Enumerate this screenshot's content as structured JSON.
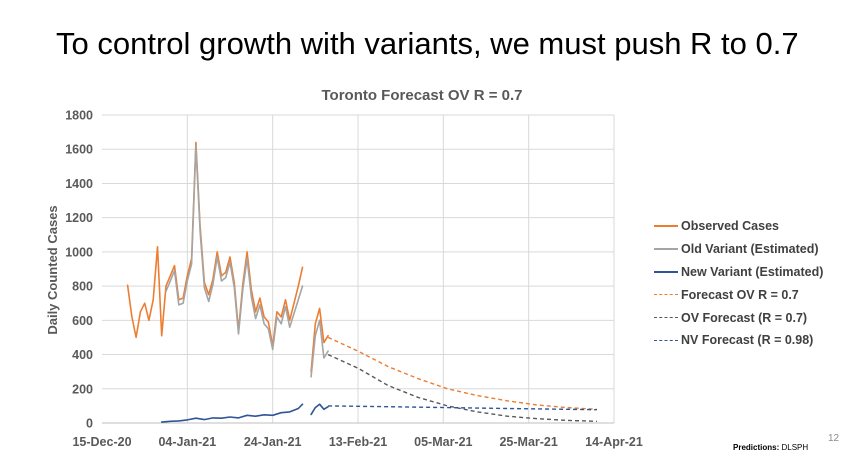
{
  "slide": {
    "title": "To control growth with variants, we must push R to 0.7",
    "footer_label": "Predictions:",
    "footer_value": "DLSPH",
    "number": "12"
  },
  "colors": {
    "observed": "#ED7D31",
    "old_variant": "#A5A5A5",
    "new_variant": "#2F5597",
    "forecast_ov": "#ED7D31",
    "ov_forecast": "#595959",
    "nv_forecast": "#2F5597",
    "grid": "#d9d9d9",
    "axis": "#bfbfbf"
  },
  "chart_data": {
    "type": "line",
    "title": "Toronto Forecast OV R = 0.7",
    "ylabel": "Daily Counted Cases",
    "xlabel": "",
    "ylim": [
      0,
      1800
    ],
    "yticks": [
      0,
      200,
      400,
      600,
      800,
      1000,
      1200,
      1400,
      1600,
      1800
    ],
    "yticklabels": [
      "0",
      "200",
      "400",
      "600",
      "800",
      "1000",
      "1200",
      "1400",
      "1600",
      "1800"
    ],
    "xlim": [
      "2020-12-15",
      "2021-04-14"
    ],
    "xticks": [
      "2020-12-15",
      "2021-01-04",
      "2021-01-24",
      "2021-02-13",
      "2021-03-05",
      "2021-03-25",
      "2021-04-14"
    ],
    "xticklabels": [
      "15-Dec-20",
      "04-Jan-21",
      "24-Jan-21",
      "13-Feb-21",
      "05-Mar-21",
      "25-Mar-21",
      "14-Apr-21"
    ],
    "grid": true,
    "legend_position": "right",
    "series": [
      {
        "name": "Observed Cases",
        "style": "solid",
        "color_key": "observed",
        "points": [
          [
            "2020-12-21",
            805
          ],
          [
            "2020-12-22",
            620
          ],
          [
            "2020-12-23",
            500
          ],
          [
            "2020-12-24",
            650
          ],
          [
            "2020-12-25",
            700
          ],
          [
            "2020-12-26",
            600
          ],
          [
            "2020-12-27",
            720
          ],
          [
            "2020-12-28",
            1030
          ],
          [
            "2020-12-29",
            510
          ],
          [
            "2020-12-30",
            800
          ],
          [
            "2020-12-31",
            860
          ],
          [
            "2021-01-01",
            920
          ],
          [
            "2021-01-02",
            720
          ],
          [
            "2021-01-03",
            730
          ],
          [
            "2021-01-04",
            860
          ],
          [
            "2021-01-05",
            960
          ],
          [
            "2021-01-06",
            1640
          ],
          [
            "2021-01-07",
            1150
          ],
          [
            "2021-01-08",
            820
          ],
          [
            "2021-01-09",
            750
          ],
          [
            "2021-01-10",
            840
          ],
          [
            "2021-01-11",
            1000
          ],
          [
            "2021-01-12",
            860
          ],
          [
            "2021-01-13",
            880
          ],
          [
            "2021-01-14",
            970
          ],
          [
            "2021-01-15",
            820
          ],
          [
            "2021-01-16",
            540
          ],
          [
            "2021-01-17",
            810
          ],
          [
            "2021-01-18",
            1000
          ],
          [
            "2021-01-19",
            780
          ],
          [
            "2021-01-20",
            650
          ],
          [
            "2021-01-21",
            730
          ],
          [
            "2021-01-22",
            620
          ],
          [
            "2021-01-23",
            590
          ],
          [
            "2021-01-24",
            450
          ],
          [
            "2021-01-25",
            650
          ],
          [
            "2021-01-26",
            620
          ],
          [
            "2021-01-27",
            720
          ],
          [
            "2021-01-28",
            600
          ],
          [
            "2021-01-29",
            700
          ],
          [
            "2021-01-30",
            800
          ],
          [
            "2021-01-31",
            910
          ]
        ]
      },
      {
        "name": "",
        "style": "solid",
        "color_key": "observed",
        "points": [
          [
            "2021-02-02",
            300
          ],
          [
            "2021-02-03",
            580
          ],
          [
            "2021-02-04",
            670
          ],
          [
            "2021-02-05",
            470
          ],
          [
            "2021-02-06",
            510
          ]
        ]
      },
      {
        "name": "Old Variant (Estimated)",
        "style": "solid",
        "color_key": "old_variant",
        "points": [
          [
            "2020-12-30",
            770
          ],
          [
            "2020-12-31",
            830
          ],
          [
            "2021-01-01",
            890
          ],
          [
            "2021-01-02",
            690
          ],
          [
            "2021-01-03",
            700
          ],
          [
            "2021-01-04",
            830
          ],
          [
            "2021-01-05",
            930
          ],
          [
            "2021-01-06",
            1620
          ],
          [
            "2021-01-07",
            1120
          ],
          [
            "2021-01-08",
            790
          ],
          [
            "2021-01-09",
            710
          ],
          [
            "2021-01-10",
            810
          ],
          [
            "2021-01-11",
            970
          ],
          [
            "2021-01-12",
            830
          ],
          [
            "2021-01-13",
            850
          ],
          [
            "2021-01-14",
            940
          ],
          [
            "2021-01-15",
            790
          ],
          [
            "2021-01-16",
            520
          ],
          [
            "2021-01-17",
            780
          ],
          [
            "2021-01-18",
            960
          ],
          [
            "2021-01-19",
            740
          ],
          [
            "2021-01-20",
            610
          ],
          [
            "2021-01-21",
            690
          ],
          [
            "2021-01-22",
            580
          ],
          [
            "2021-01-23",
            550
          ],
          [
            "2021-01-24",
            430
          ],
          [
            "2021-01-25",
            620
          ],
          [
            "2021-01-26",
            580
          ],
          [
            "2021-01-27",
            680
          ],
          [
            "2021-01-28",
            560
          ],
          [
            "2021-01-29",
            640
          ],
          [
            "2021-01-30",
            720
          ],
          [
            "2021-01-31",
            800
          ]
        ]
      },
      {
        "name": "",
        "style": "solid",
        "color_key": "old_variant",
        "points": [
          [
            "2021-02-02",
            270
          ],
          [
            "2021-02-03",
            510
          ],
          [
            "2021-02-04",
            600
          ],
          [
            "2021-02-05",
            380
          ],
          [
            "2021-02-06",
            420
          ]
        ]
      },
      {
        "name": "New Variant (Estimated)",
        "style": "solid",
        "color_key": "new_variant",
        "points": [
          [
            "2020-12-29",
            5
          ],
          [
            "2020-12-31",
            10
          ],
          [
            "2021-01-02",
            12
          ],
          [
            "2021-01-04",
            18
          ],
          [
            "2021-01-06",
            28
          ],
          [
            "2021-01-08",
            20
          ],
          [
            "2021-01-10",
            30
          ],
          [
            "2021-01-12",
            28
          ],
          [
            "2021-01-14",
            35
          ],
          [
            "2021-01-16",
            30
          ],
          [
            "2021-01-18",
            45
          ],
          [
            "2021-01-20",
            40
          ],
          [
            "2021-01-22",
            48
          ],
          [
            "2021-01-24",
            45
          ],
          [
            "2021-01-26",
            60
          ],
          [
            "2021-01-28",
            65
          ],
          [
            "2021-01-30",
            85
          ],
          [
            "2021-01-31",
            110
          ]
        ]
      },
      {
        "name": "",
        "style": "solid",
        "color_key": "new_variant",
        "points": [
          [
            "2021-02-02",
            50
          ],
          [
            "2021-02-03",
            90
          ],
          [
            "2021-02-04",
            110
          ],
          [
            "2021-02-05",
            80
          ],
          [
            "2021-02-06",
            95
          ]
        ]
      },
      {
        "name": "Forecast OV R = 0.7",
        "style": "dashed",
        "color_key": "forecast_ov",
        "points": [
          [
            "2021-02-06",
            500
          ],
          [
            "2021-02-13",
            420
          ],
          [
            "2021-02-20",
            330
          ],
          [
            "2021-02-27",
            260
          ],
          [
            "2021-03-06",
            200
          ],
          [
            "2021-03-13",
            160
          ],
          [
            "2021-03-20",
            130
          ],
          [
            "2021-03-27",
            105
          ],
          [
            "2021-04-03",
            90
          ],
          [
            "2021-04-10",
            80
          ]
        ]
      },
      {
        "name": "OV Forecast (R = 0.7)",
        "style": "dashed",
        "color_key": "ov_forecast",
        "points": [
          [
            "2021-02-06",
            400
          ],
          [
            "2021-02-13",
            320
          ],
          [
            "2021-02-20",
            220
          ],
          [
            "2021-02-27",
            150
          ],
          [
            "2021-03-06",
            100
          ],
          [
            "2021-03-13",
            65
          ],
          [
            "2021-03-20",
            40
          ],
          [
            "2021-03-27",
            25
          ],
          [
            "2021-04-03",
            15
          ],
          [
            "2021-04-10",
            10
          ]
        ]
      },
      {
        "name": "NV Forecast (R = 0.98)",
        "style": "dashed",
        "color_key": "nv_forecast",
        "points": [
          [
            "2021-02-06",
            100
          ],
          [
            "2021-02-20",
            95
          ],
          [
            "2021-03-06",
            90
          ],
          [
            "2021-03-20",
            85
          ],
          [
            "2021-04-03",
            80
          ],
          [
            "2021-04-10",
            78
          ]
        ]
      }
    ]
  }
}
